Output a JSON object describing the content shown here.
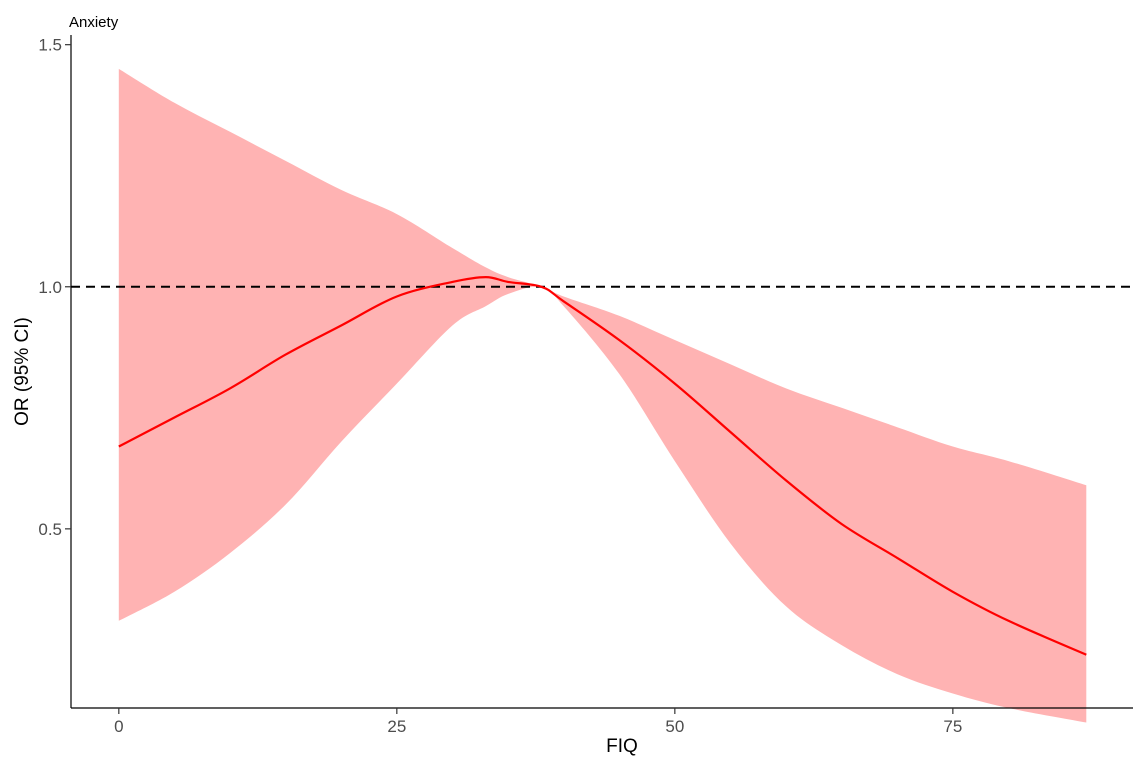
{
  "chart_data": {
    "type": "line",
    "title": "Anxiety",
    "xlabel": "FIQ",
    "ylabel": "OR (95% CI)",
    "xlim": [
      -4.3,
      91.2
    ],
    "ylim": [
      0.13,
      1.52
    ],
    "x_ticks": [
      0,
      25,
      50,
      75
    ],
    "y_ticks": [
      0.5,
      1.0,
      1.5
    ],
    "y_tick_labels": [
      "0.5",
      "1.0",
      "1.5"
    ],
    "grid": false,
    "legend": "none",
    "reference_line": {
      "y": 1.0,
      "style": "dashed",
      "color": "#000000"
    },
    "line_color": "#ff0000",
    "band_color": "#ffb3b3",
    "series": [
      {
        "x": [
          0,
          5,
          10,
          15,
          20,
          25,
          30,
          33,
          35,
          38,
          40,
          45,
          50,
          55,
          60,
          65,
          70,
          75,
          80,
          87
        ],
        "y": [
          0.67,
          0.73,
          0.79,
          0.86,
          0.92,
          0.98,
          1.01,
          1.02,
          1.01,
          1.0,
          0.97,
          0.89,
          0.8,
          0.7,
          0.6,
          0.51,
          0.44,
          0.37,
          0.31,
          0.24
        ],
        "lower": [
          0.31,
          0.37,
          0.45,
          0.55,
          0.68,
          0.8,
          0.92,
          0.96,
          0.985,
          1.0,
          0.96,
          0.82,
          0.64,
          0.47,
          0.34,
          0.26,
          0.2,
          0.16,
          0.13,
          0.1
        ],
        "upper": [
          1.45,
          1.38,
          1.32,
          1.26,
          1.2,
          1.15,
          1.08,
          1.04,
          1.02,
          1.0,
          0.98,
          0.94,
          0.89,
          0.84,
          0.79,
          0.75,
          0.71,
          0.67,
          0.64,
          0.59
        ]
      }
    ]
  }
}
